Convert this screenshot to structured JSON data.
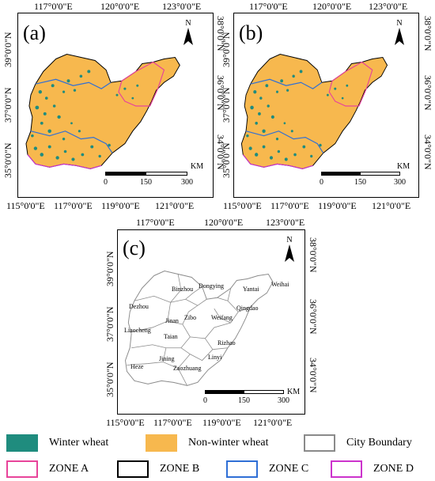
{
  "panels": {
    "a": {
      "label": "(a)"
    },
    "b": {
      "label": "(b)"
    },
    "c": {
      "label": "(c)"
    }
  },
  "top_coords": {
    "a": [
      "117°0'0\"E",
      "120°0'0\"E",
      "123°0'0\"E"
    ],
    "b": [
      "117°0'0\"E",
      "120°0'0\"E",
      "123°0'0\"E"
    ],
    "c": [
      "117°0'0\"E",
      "120°0'0\"E",
      "123°0'0\"E"
    ]
  },
  "bottom_coords": {
    "a": [
      "115°0'0\"E",
      "117°0'0\"E",
      "119°0'0\"E",
      "121°0'0\"E"
    ],
    "b": [
      "115°0'0\"E",
      "117°0'0\"E",
      "119°0'0\"E",
      "121°0'0\"E"
    ],
    "c": [
      "115°0'0\"E",
      "117°0'0\"E",
      "119°0'0\"E",
      "121°0'0\"E"
    ]
  },
  "left_coords": {
    "a": [
      "39°0'0\"N",
      "37°0'0\"N",
      "35°0'0\"N"
    ],
    "b": [
      "39°0'0\"N",
      "37°0'0\"N",
      "35°0'0\"N"
    ],
    "c": [
      "39°0'0\"N",
      "37°0'0\"N",
      "35°0'0\"N"
    ]
  },
  "right_coords": {
    "a": [
      "38°0'0\"N",
      "36°0'0\"N",
      "34°0'0\"N"
    ],
    "b": [
      "38°0'0\"N",
      "36°0'0\"N",
      "34°0'0\"N"
    ],
    "c": [
      "38°0'0\"N",
      "36°0'0\"N",
      "34°0'0\"N"
    ]
  },
  "north_label": "N",
  "scale": {
    "unit": "KM",
    "ticks": [
      "0",
      "150",
      "300"
    ]
  },
  "cities": [
    "Binzhou",
    "Dongying",
    "Yantai",
    "Weihai",
    "Dezhou",
    "Qingdao",
    "Jinan",
    "Zibo",
    "Weifang",
    "Liaocheng",
    "Taian",
    "Rizhao",
    "Linyi",
    "Heze",
    "Jining",
    "Zaozhuang"
  ],
  "legend": [
    {
      "label": "Winter wheat",
      "color": "#1f8c7e",
      "style": "fill"
    },
    {
      "label": "Non-winter wheat",
      "color": "#f7b84e",
      "style": "fill"
    },
    {
      "label": "City Boundary",
      "color": "#8a8a8a",
      "style": "outline"
    },
    {
      "label": "ZONE A",
      "color": "#e8449a",
      "style": "outline"
    },
    {
      "label": "ZONE B",
      "color": "#000000",
      "style": "outline"
    },
    {
      "label": "ZONE C",
      "color": "#2f6fd6",
      "style": "outline"
    },
    {
      "label": "ZONE D",
      "color": "#cc33cc",
      "style": "outline"
    }
  ],
  "colors": {
    "wheat": "#1f8c7e",
    "nonwheat": "#f7b84e",
    "city_boundary": "#8a8a8a",
    "zone_a": "#e8449a",
    "zone_c": "#2f6fd6"
  }
}
